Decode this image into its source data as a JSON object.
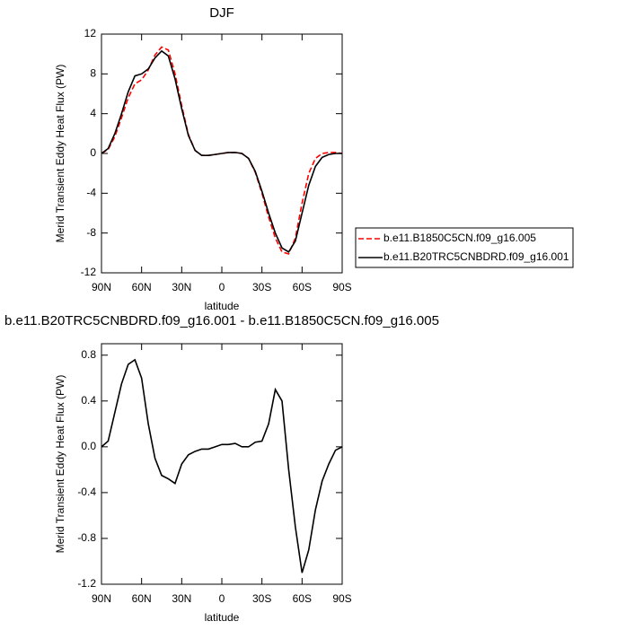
{
  "chart_data": [
    {
      "type": "line",
      "title": "DJF",
      "xlabel": "latitude",
      "ylabel": "Merid Transient Eddy Heat Flux (PW)",
      "x": [
        90,
        85,
        80,
        75,
        70,
        65,
        60,
        55,
        50,
        45,
        40,
        35,
        30,
        25,
        20,
        15,
        10,
        5,
        0,
        -5,
        -10,
        -15,
        -20,
        -25,
        -30,
        -35,
        -40,
        -45,
        -50,
        -55,
        -60,
        -65,
        -70,
        -75,
        -80,
        -85,
        -90
      ],
      "series": [
        {
          "name": "b.e11.B1850C5CN.f09_g16.005",
          "color": "#ff0000",
          "style": "dashed",
          "values": [
            0,
            0.4,
            1.7,
            3.6,
            5.6,
            7,
            7.4,
            8.4,
            9.9,
            10.7,
            10.4,
            8,
            4.8,
            1.9,
            0.3,
            -0.2,
            -0.2,
            -0.1,
            0,
            0.1,
            0.1,
            0,
            -0.5,
            -1.9,
            -4,
            -6.4,
            -8.5,
            -9.9,
            -10.1,
            -8.5,
            -5,
            -2,
            -0.5,
            0,
            0.1,
            0.1,
            0
          ]
        },
        {
          "name": "b.e11.B20TRC5CNBDRD.f09_g16.001",
          "color": "#000000",
          "style": "solid",
          "values": [
            0,
            0.5,
            2,
            4,
            6.2,
            7.8,
            8,
            8.5,
            9.6,
            10.3,
            9.8,
            7.5,
            4.5,
            1.8,
            0.3,
            -0.2,
            -0.2,
            -0.1,
            0,
            0.1,
            0.1,
            0,
            -0.5,
            -1.8,
            -3.8,
            -6,
            -8,
            -9.5,
            -9.9,
            -8.8,
            -6,
            -3.2,
            -1.3,
            -0.4,
            -0.1,
            0,
            0
          ]
        }
      ],
      "xlim": [
        90,
        -90
      ],
      "ylim": [
        -12,
        12
      ],
      "xticks": [
        {
          "value": 90,
          "label": "90N"
        },
        {
          "value": 60,
          "label": "60N"
        },
        {
          "value": 30,
          "label": "30N"
        },
        0,
        {
          "value": -30,
          "label": "30S"
        },
        {
          "value": -60,
          "label": "60S"
        },
        {
          "value": -90,
          "label": "90S"
        }
      ],
      "yticks": [
        -12,
        -8,
        -4,
        0,
        4,
        8,
        12
      ],
      "legend": "right"
    },
    {
      "type": "line",
      "title": "b.e11.B20TRC5CNBDRD.f09_g16.001 - b.e11.B1850C5CN.f09_g16.005",
      "xlabel": "latitude",
      "ylabel": "Merid Transient Eddy Heat Flux (PW)",
      "x": [
        90,
        85,
        80,
        75,
        70,
        65,
        60,
        55,
        50,
        45,
        40,
        35,
        30,
        25,
        20,
        15,
        10,
        5,
        0,
        -5,
        -10,
        -15,
        -20,
        -25,
        -30,
        -35,
        -40,
        -45,
        -50,
        -55,
        -60,
        -65,
        -70,
        -75,
        -80,
        -85,
        -90
      ],
      "series": [
        {
          "color": "#000000",
          "style": "solid",
          "values": [
            0,
            0.05,
            0.3,
            0.55,
            0.72,
            0.76,
            0.6,
            0.2,
            -0.1,
            -0.25,
            -0.28,
            -0.32,
            -0.15,
            -0.07,
            -0.04,
            -0.02,
            -0.02,
            0,
            0.02,
            0.02,
            0.03,
            0,
            0,
            0.04,
            0.05,
            0.2,
            0.5,
            0.4,
            -0.2,
            -0.7,
            -1.1,
            -0.9,
            -0.55,
            -0.3,
            -0.15,
            -0.03,
            0
          ]
        }
      ],
      "xlim": [
        90,
        -90
      ],
      "ylim": [
        -1.2,
        0.9
      ],
      "xticks": [
        {
          "value": 90,
          "label": "90N"
        },
        {
          "value": 60,
          "label": "60N"
        },
        {
          "value": 30,
          "label": "30N"
        },
        0,
        {
          "value": -30,
          "label": "30S"
        },
        {
          "value": -60,
          "label": "60S"
        },
        {
          "value": -90,
          "label": "90S"
        }
      ],
      "yticks": [
        -1.2,
        -0.8,
        -0.4,
        {
          "value": 0,
          "label": "0.0"
        },
        0.4,
        0.8
      ]
    }
  ]
}
